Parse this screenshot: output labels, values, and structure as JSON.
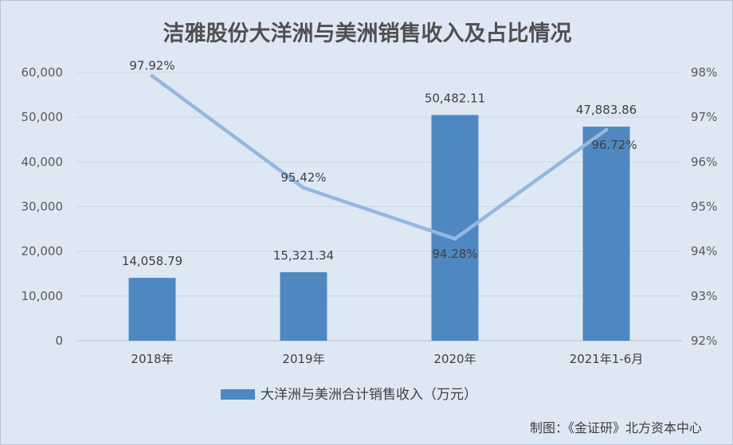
{
  "chart_data": {
    "type": "bar+line",
    "title": "洁雅股份大洋洲与美洲销售收入及占比情况",
    "categories": [
      "2018年",
      "2019年",
      "2020年",
      "2021年1-6月"
    ],
    "bar_series": {
      "name": "大洋洲与美洲合计销售收入（万元）",
      "values": [
        14058.79,
        15321.34,
        50482.11,
        47883.86
      ],
      "labels": [
        "14,058.79",
        "15,321.34",
        "50,482.11",
        "47,883.86"
      ],
      "color": "#4f87c0"
    },
    "line_series": {
      "values": [
        97.92,
        95.42,
        94.28,
        96.72
      ],
      "labels": [
        "97.92%",
        "95.42%",
        "94.28%",
        "96.72%"
      ],
      "color": "#95b7e0"
    },
    "y_left": {
      "min": 0,
      "max": 60000,
      "ticks": [
        0,
        10000,
        20000,
        30000,
        40000,
        50000,
        60000
      ],
      "tick_labels": [
        "0",
        "10,000",
        "20,000",
        "30,000",
        "40,000",
        "50,000",
        "60,000"
      ]
    },
    "y_right": {
      "min": 92,
      "max": 98,
      "ticks": [
        92,
        93,
        94,
        95,
        96,
        97,
        98
      ],
      "tick_labels": [
        "92%",
        "93%",
        "94%",
        "95%",
        "96%",
        "97%",
        "98%"
      ]
    },
    "grid": true,
    "legend": "bottom",
    "credit": "制图：《金证研》北方资本中心"
  }
}
